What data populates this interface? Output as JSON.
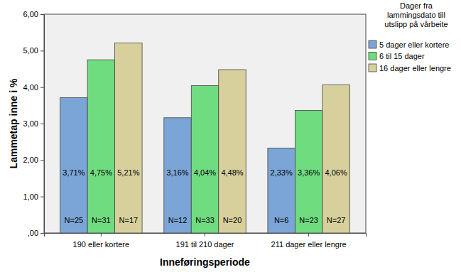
{
  "chart_data": {
    "type": "bar",
    "x_label": "Inneføringsperiode",
    "y_label": "Lammetap inne i %",
    "legend_title": [
      "Dager fra",
      "lammingsdato till",
      "utslipp på vårbeite"
    ],
    "legend": "right",
    "data_labels": true,
    "categories": [
      "190 eller kortere",
      "191 til 210 dager",
      "211 dager eller lengre"
    ],
    "ylim": [
      0,
      6
    ],
    "yticks": [
      {
        "value": 0,
        "label": ",00"
      },
      {
        "value": 1,
        "label": "1,00"
      },
      {
        "value": 2,
        "label": "2,00"
      },
      {
        "value": 3,
        "label": "3,00"
      },
      {
        "value": 4,
        "label": "4,00"
      },
      {
        "value": 5,
        "label": "5,00"
      },
      {
        "value": 6,
        "label": "6,00"
      }
    ],
    "series": [
      {
        "name": "5 dager eller kortere",
        "color": "#7ba5d7",
        "values": [
          3.71,
          3.16,
          2.33
        ],
        "value_labels": [
          "3,71%",
          "3,16%",
          "2,33%"
        ],
        "n_labels": [
          "N=25",
          "N=12",
          "N=6"
        ]
      },
      {
        "name": "6 til 15 dager",
        "color": "#70dc80",
        "values": [
          4.75,
          4.04,
          3.36
        ],
        "value_labels": [
          "4,75%",
          "4,04%",
          "3,36%"
        ],
        "n_labels": [
          "N=31",
          "N=33",
          "N=23"
        ]
      },
      {
        "name": "16 dager eller lengre",
        "color": "#d8d09c",
        "values": [
          5.21,
          4.48,
          4.06
        ],
        "value_labels": [
          "5,21%",
          "4,48%",
          "4,06%"
        ],
        "n_labels": [
          "N=17",
          "N=20",
          "N=27"
        ]
      }
    ]
  }
}
